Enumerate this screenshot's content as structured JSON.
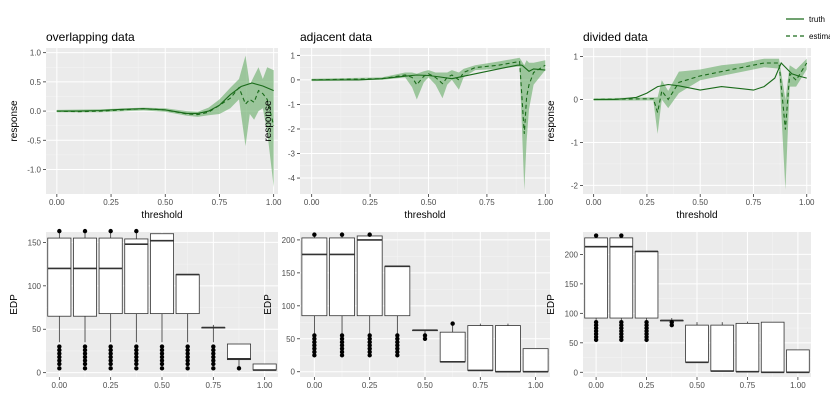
{
  "chart_data": [
    {
      "type": "line",
      "title": "overlapping data",
      "xlabel": "threshold",
      "ylabel": "response",
      "xlim": [
        -0.05,
        1.02
      ],
      "ylim": [
        -1.42,
        1.08
      ],
      "xticks": [
        0,
        0.25,
        0.5,
        0.75,
        1
      ],
      "xtick_labels": [
        "0.00",
        "0.25",
        "0.50",
        "0.75",
        "1.00"
      ],
      "yticks": [
        -1,
        -0.5,
        0,
        0.5,
        1
      ],
      "ytick_labels": [
        "-1.0",
        "-0.5",
        "0.0",
        "0.5",
        "1.0"
      ],
      "series": [
        {
          "name": "truth",
          "x": [
            0,
            0.1,
            0.2,
            0.3,
            0.4,
            0.5,
            0.6,
            0.65,
            0.7,
            0.75,
            0.8,
            0.85,
            0.9,
            0.95,
            1.0
          ],
          "values": [
            0,
            0.0,
            0.01,
            0.03,
            0.04,
            0.02,
            -0.04,
            -0.04,
            0.0,
            0.1,
            0.28,
            0.42,
            0.48,
            0.43,
            0.35
          ]
        },
        {
          "name": "estimate",
          "x": [
            0,
            0.1,
            0.2,
            0.3,
            0.4,
            0.5,
            0.6,
            0.65,
            0.7,
            0.75,
            0.8,
            0.84,
            0.87,
            0.89,
            0.91,
            0.93,
            0.95,
            0.97,
            1.0
          ],
          "values": [
            0,
            -0.01,
            0.0,
            0.02,
            0.04,
            0.02,
            -0.05,
            -0.06,
            -0.02,
            0.1,
            0.22,
            0.4,
            0.12,
            0.2,
            0.15,
            0.35,
            0.3,
            0.2,
            -0.25
          ]
        }
      ],
      "band": {
        "x": [
          0,
          0.2,
          0.4,
          0.5,
          0.6,
          0.65,
          0.7,
          0.75,
          0.8,
          0.84,
          0.87,
          0.89,
          0.91,
          0.93,
          0.95,
          0.97,
          1.0
        ],
        "upper": [
          0.02,
          0.03,
          0.06,
          0.05,
          0.0,
          -0.01,
          0.06,
          0.2,
          0.4,
          0.55,
          0.95,
          0.45,
          0.6,
          0.75,
          0.55,
          0.75,
          0.7
        ],
        "lower": [
          -0.02,
          -0.02,
          0.01,
          -0.01,
          -0.08,
          -0.1,
          -0.07,
          -0.05,
          0.05,
          0.2,
          -0.6,
          -0.05,
          -0.15,
          0.0,
          0.05,
          -0.35,
          -1.3
        ]
      }
    },
    {
      "type": "line",
      "title": "adjacent data",
      "xlabel": "threshold",
      "ylabel": "response",
      "xlim": [
        -0.05,
        1.02
      ],
      "ylim": [
        -4.65,
        1.3
      ],
      "xticks": [
        0,
        0.25,
        0.5,
        0.75,
        1
      ],
      "xtick_labels": [
        "0.00",
        "0.25",
        "0.50",
        "0.75",
        "1.00"
      ],
      "yticks": [
        -4,
        -3,
        -2,
        -1,
        0,
        1
      ],
      "ytick_labels": [
        "-4",
        "-3",
        "-2",
        "-1",
        "0",
        "1"
      ],
      "series": [
        {
          "name": "truth",
          "x": [
            0,
            0.1,
            0.2,
            0.3,
            0.4,
            0.45,
            0.5,
            0.55,
            0.6,
            0.7,
            0.8,
            0.88,
            0.9,
            0.93,
            0.95,
            1.0
          ],
          "values": [
            0,
            0.0,
            0.0,
            0.05,
            0.15,
            0.2,
            0.18,
            0.12,
            0.05,
            0.25,
            0.45,
            0.6,
            0.6,
            0.35,
            0.45,
            0.4
          ]
        },
        {
          "name": "estimate",
          "x": [
            0,
            0.3,
            0.4,
            0.43,
            0.45,
            0.48,
            0.5,
            0.53,
            0.56,
            0.58,
            0.6,
            0.63,
            0.65,
            0.7,
            0.8,
            0.89,
            0.91,
            0.92,
            0.93,
            0.95,
            1.0
          ],
          "values": [
            0,
            0.05,
            0.2,
            0.1,
            -0.2,
            0.15,
            0.25,
            0.1,
            -0.15,
            0.1,
            0.2,
            0.0,
            0.3,
            0.5,
            0.6,
            0.75,
            -2.2,
            -0.7,
            -0.2,
            0.3,
            0.6
          ]
        }
      ],
      "band": {
        "x": [
          0,
          0.3,
          0.4,
          0.43,
          0.45,
          0.48,
          0.5,
          0.53,
          0.56,
          0.58,
          0.6,
          0.63,
          0.65,
          0.7,
          0.8,
          0.89,
          0.91,
          0.92,
          0.93,
          0.95,
          1.0
        ],
        "upper": [
          0.05,
          0.1,
          0.3,
          0.3,
          0.25,
          0.35,
          0.4,
          0.3,
          0.3,
          0.3,
          0.4,
          0.3,
          0.45,
          0.6,
          0.75,
          0.9,
          0.6,
          0.8,
          0.7,
          0.7,
          0.8
        ],
        "lower": [
          -0.05,
          0.0,
          0.1,
          -0.3,
          -0.8,
          -0.1,
          0.1,
          -0.2,
          -0.75,
          -0.2,
          0.0,
          -0.4,
          0.1,
          0.4,
          0.45,
          0.55,
          -4.5,
          -2.5,
          -1.2,
          -0.2,
          0.4
        ]
      }
    },
    {
      "type": "line",
      "title": "divided data",
      "xlabel": "threshold",
      "ylabel": "response",
      "xlim": [
        -0.05,
        1.02
      ],
      "ylim": [
        -2.2,
        1.2
      ],
      "xticks": [
        0,
        0.25,
        0.5,
        0.75,
        1
      ],
      "xtick_labels": [
        "0.00",
        "0.25",
        "0.50",
        "0.75",
        "1.00"
      ],
      "yticks": [
        -2,
        -1,
        0,
        1
      ],
      "ytick_labels": [
        "-2",
        "-1",
        "0",
        "1"
      ],
      "series": [
        {
          "name": "truth",
          "x": [
            0,
            0.1,
            0.2,
            0.25,
            0.3,
            0.35,
            0.4,
            0.5,
            0.6,
            0.7,
            0.75,
            0.8,
            0.85,
            0.88,
            0.9,
            0.93,
            0.96,
            1.0
          ],
          "values": [
            0,
            0.0,
            0.05,
            0.15,
            0.3,
            0.35,
            0.32,
            0.22,
            0.3,
            0.25,
            0.22,
            0.3,
            0.5,
            0.85,
            0.75,
            0.6,
            0.55,
            0.5
          ]
        },
        {
          "name": "estimate",
          "x": [
            0,
            0.28,
            0.3,
            0.32,
            0.35,
            0.4,
            0.5,
            0.6,
            0.7,
            0.8,
            0.87,
            0.9,
            0.92,
            0.95,
            1.0
          ],
          "values": [
            0,
            0.02,
            -0.3,
            0.2,
            0.0,
            0.4,
            0.55,
            0.65,
            0.75,
            0.85,
            0.85,
            -0.7,
            0.6,
            0.45,
            0.85
          ]
        }
      ],
      "band": {
        "x": [
          0,
          0.28,
          0.3,
          0.32,
          0.35,
          0.4,
          0.5,
          0.6,
          0.7,
          0.8,
          0.87,
          0.9,
          0.92,
          0.95,
          1.0
        ],
        "upper": [
          0.03,
          0.05,
          0.05,
          0.45,
          0.2,
          0.65,
          0.7,
          0.8,
          0.85,
          0.95,
          0.95,
          0.0,
          0.8,
          0.7,
          0.95
        ],
        "lower": [
          -0.03,
          -0.02,
          -0.8,
          0.0,
          -0.2,
          0.15,
          0.45,
          0.55,
          0.65,
          0.75,
          0.72,
          -2.1,
          0.3,
          0.3,
          0.7
        ]
      }
    },
    {
      "type": "box",
      "title": "",
      "xlabel": "",
      "ylabel": "EDP",
      "xlim": [
        -0.065,
        1.065
      ],
      "ylim": [
        -5,
        162
      ],
      "xticks": [
        0,
        0.25,
        0.5,
        0.75,
        1
      ],
      "xtick_labels": [
        "0.00",
        "0.25",
        "0.50",
        "0.75",
        "1.00"
      ],
      "yticks": [
        0,
        50,
        100,
        150
      ],
      "ytick_labels": [
        "0",
        "50",
        "100",
        "150"
      ],
      "boxes": [
        {
          "x": 0.0,
          "lower": 65,
          "median": 120,
          "upper": 155,
          "whisker_top": 163,
          "whisker_bottom": 35,
          "outliers": [
            5,
            10,
            14,
            18,
            22,
            26,
            30,
            163
          ]
        },
        {
          "x": 0.125,
          "lower": 65,
          "median": 120,
          "upper": 155,
          "whisker_top": 163,
          "whisker_bottom": 35,
          "outliers": [
            5,
            10,
            14,
            18,
            22,
            26,
            30,
            163
          ]
        },
        {
          "x": 0.25,
          "lower": 68,
          "median": 120,
          "upper": 155,
          "whisker_top": 163,
          "whisker_bottom": 35,
          "outliers": [
            5,
            10,
            14,
            18,
            22,
            26,
            30,
            163
          ]
        },
        {
          "x": 0.375,
          "lower": 68,
          "median": 148,
          "upper": 154,
          "whisker_top": 163,
          "whisker_bottom": 35,
          "outliers": [
            5,
            10,
            14,
            18,
            22,
            26,
            30,
            163
          ]
        },
        {
          "x": 0.5,
          "lower": 68,
          "median": 152,
          "upper": 160,
          "whisker_top": 160,
          "whisker_bottom": 35,
          "outliers": [
            5,
            10,
            14,
            18,
            22,
            26,
            30
          ]
        },
        {
          "x": 0.625,
          "lower": 68,
          "median": 113,
          "upper": 113,
          "whisker_top": 113,
          "whisker_bottom": 35,
          "outliers": [
            5,
            10,
            14,
            18,
            22,
            26,
            30
          ]
        },
        {
          "x": 0.75,
          "lower": 52,
          "median": 52,
          "upper": 52,
          "whisker_top": 55,
          "whisker_bottom": 35,
          "outliers": [
            5,
            10,
            14,
            18,
            22,
            26,
            30
          ]
        },
        {
          "x": 0.875,
          "lower": 15,
          "median": 16,
          "upper": 33,
          "whisker_top": 33,
          "whisker_bottom": 5,
          "outliers": [
            5
          ]
        },
        {
          "x": 1.0,
          "lower": 3,
          "median": 3,
          "upper": 10,
          "whisker_top": 10,
          "whisker_bottom": 3,
          "outliers": []
        }
      ]
    },
    {
      "type": "box",
      "title": "",
      "xlabel": "",
      "ylabel": "EDP",
      "xlim": [
        -0.065,
        1.065
      ],
      "ylim": [
        -8,
        212
      ],
      "xticks": [
        0,
        0.25,
        0.5,
        0.75,
        1
      ],
      "xtick_labels": [
        "0.00",
        "0.25",
        "0.50",
        "0.75",
        "1.00"
      ],
      "yticks": [
        0,
        50,
        100,
        150,
        200
      ],
      "ytick_labels": [
        "0",
        "50",
        "100",
        "150",
        "200"
      ],
      "boxes": [
        {
          "x": 0.0,
          "lower": 85,
          "median": 178,
          "upper": 203,
          "whisker_top": 208,
          "whisker_bottom": 55,
          "outliers": [
            25,
            30,
            35,
            40,
            45,
            50,
            55,
            208
          ]
        },
        {
          "x": 0.125,
          "lower": 85,
          "median": 178,
          "upper": 203,
          "whisker_top": 208,
          "whisker_bottom": 55,
          "outliers": [
            25,
            30,
            35,
            40,
            45,
            50,
            55,
            208
          ]
        },
        {
          "x": 0.25,
          "lower": 85,
          "median": 200,
          "upper": 206,
          "whisker_top": 208,
          "whisker_bottom": 55,
          "outliers": [
            25,
            30,
            35,
            40,
            45,
            50,
            55,
            208
          ]
        },
        {
          "x": 0.375,
          "lower": 85,
          "median": 160,
          "upper": 160,
          "whisker_top": 160,
          "whisker_bottom": 55,
          "outliers": [
            25,
            30,
            35,
            40,
            45,
            50,
            55
          ]
        },
        {
          "x": 0.5,
          "lower": 63,
          "median": 63,
          "upper": 63,
          "whisker_top": 63,
          "whisker_bottom": 55,
          "outliers": [
            50,
            55
          ]
        },
        {
          "x": 0.625,
          "lower": 15,
          "median": 15,
          "upper": 60,
          "whisker_top": 73,
          "whisker_bottom": 15,
          "outliers": [
            73
          ]
        },
        {
          "x": 0.75,
          "lower": 2,
          "median": 2,
          "upper": 70,
          "whisker_top": 73,
          "whisker_bottom": 2,
          "outliers": []
        },
        {
          "x": 0.875,
          "lower": 0,
          "median": 0,
          "upper": 70,
          "whisker_top": 73,
          "whisker_bottom": 0,
          "outliers": []
        },
        {
          "x": 1.0,
          "lower": 0,
          "median": 0,
          "upper": 35,
          "whisker_top": 35,
          "whisker_bottom": 0,
          "outliers": []
        }
      ]
    },
    {
      "type": "box",
      "title": "",
      "xlabel": "",
      "ylabel": "EDP",
      "xlim": [
        -0.065,
        1.065
      ],
      "ylim": [
        -8,
        238
      ],
      "xticks": [
        0,
        0.25,
        0.5,
        0.75,
        1
      ],
      "xtick_labels": [
        "0.00",
        "0.25",
        "0.50",
        "0.75",
        "1.00"
      ],
      "yticks": [
        0,
        50,
        100,
        150,
        200
      ],
      "ytick_labels": [
        "0",
        "50",
        "100",
        "150",
        "200"
      ],
      "boxes": [
        {
          "x": 0.0,
          "lower": 92,
          "median": 213,
          "upper": 228,
          "whisker_top": 232,
          "whisker_bottom": 55,
          "outliers": [
            55,
            60,
            65,
            70,
            75,
            80,
            85,
            232
          ]
        },
        {
          "x": 0.125,
          "lower": 92,
          "median": 213,
          "upper": 228,
          "whisker_top": 232,
          "whisker_bottom": 55,
          "outliers": [
            55,
            60,
            65,
            70,
            75,
            80,
            85,
            232
          ]
        },
        {
          "x": 0.25,
          "lower": 92,
          "median": 205,
          "upper": 205,
          "whisker_top": 205,
          "whisker_bottom": 55,
          "outliers": [
            55,
            60,
            65,
            70,
            75,
            80,
            85
          ]
        },
        {
          "x": 0.375,
          "lower": 88,
          "median": 88,
          "upper": 88,
          "whisker_top": 92,
          "whisker_bottom": 80,
          "outliers": [
            80,
            85
          ]
        },
        {
          "x": 0.5,
          "lower": 17,
          "median": 17,
          "upper": 80,
          "whisker_top": 85,
          "whisker_bottom": 17,
          "outliers": []
        },
        {
          "x": 0.625,
          "lower": 2,
          "median": 2,
          "upper": 80,
          "whisker_top": 85,
          "whisker_bottom": 2,
          "outliers": []
        },
        {
          "x": 0.75,
          "lower": 1,
          "median": 1,
          "upper": 83,
          "whisker_top": 86,
          "whisker_bottom": 1,
          "outliers": []
        },
        {
          "x": 0.875,
          "lower": 0,
          "median": 0,
          "upper": 85,
          "whisker_top": 85,
          "whisker_bottom": 0,
          "outliers": []
        },
        {
          "x": 1.0,
          "lower": 0,
          "median": 0,
          "upper": 38,
          "whisker_top": 38,
          "whisker_bottom": 0,
          "outliers": []
        }
      ]
    }
  ],
  "legend": {
    "items": [
      {
        "label": "truth",
        "style": "solid"
      },
      {
        "label": "estimate",
        "style": "dashed"
      }
    ]
  },
  "colors": {
    "panel": "#ebebeb",
    "grid_major": "#ffffff",
    "line": "#1a6b1a",
    "band": "#5aa55a",
    "box_fill": "#ffffff",
    "box_stroke": "#333333"
  }
}
